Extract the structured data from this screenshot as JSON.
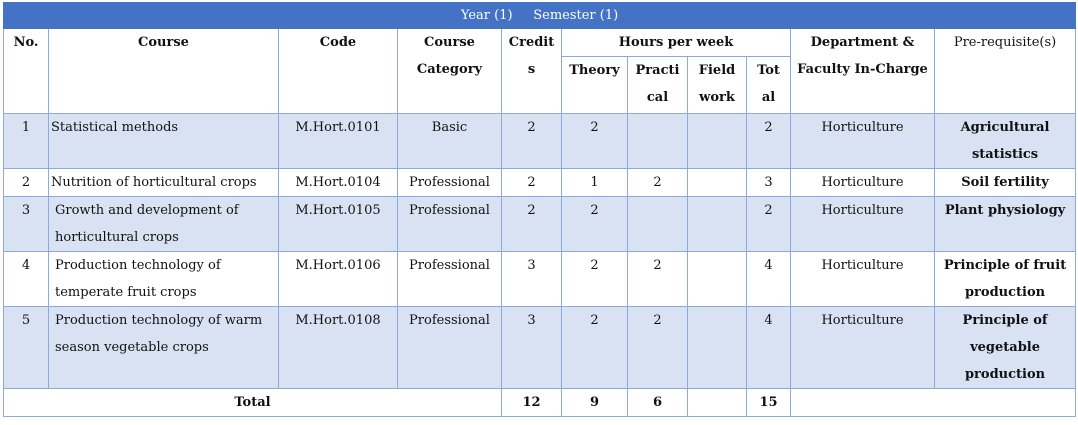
{
  "banner": {
    "year": "Year (1)",
    "semester": "Semester (1)"
  },
  "header": {
    "no": "No.",
    "course": "Course",
    "code": "Code",
    "category_1": "Course",
    "category_2": "Category",
    "credits_1": "Credit",
    "credits_2": "s",
    "hours": "Hours per week",
    "theory": "Theory",
    "practical_1": "Practi",
    "practical_2": "cal",
    "field_1": "Field",
    "field_2": "work",
    "total_1": "Tot",
    "total_2": "al",
    "dept_1": "Department &",
    "dept_2": "Faculty In-Charge",
    "prereq": "Pre-requisite(s)"
  },
  "rows": [
    {
      "no": "1",
      "course_1": "Statistical methods",
      "course_2": "",
      "code": "M.Hort.0101",
      "category": "Basic",
      "credits": "2",
      "theory": "2",
      "practical": "",
      "field": "",
      "total": "2",
      "dept": "Horticulture",
      "prereq_1": "Agricultural",
      "prereq_2": "statistics",
      "prereq_3": ""
    },
    {
      "no": "2",
      "course_1": "Nutrition of horticultural crops",
      "course_2": "",
      "code": "M.Hort.0104",
      "category": "Professional",
      "credits": "2",
      "theory": "1",
      "practical": "2",
      "field": "",
      "total": "3",
      "dept": "Horticulture",
      "prereq_1": "Soil fertility",
      "prereq_2": "",
      "prereq_3": ""
    },
    {
      "no": "3",
      "course_1": "Growth and development of",
      "course_2": "horticultural crops",
      "code": "M.Hort.0105",
      "category": "Professional",
      "credits": "2",
      "theory": "2",
      "practical": "",
      "field": "",
      "total": "2",
      "dept": "Horticulture",
      "prereq_1": "Plant physiology",
      "prereq_2": "",
      "prereq_3": ""
    },
    {
      "no": "4",
      "course_1": "Production technology of",
      "course_2": "temperate fruit crops",
      "code": "M.Hort.0106",
      "category": "Professional",
      "credits": "3",
      "theory": "2",
      "practical": "2",
      "field": "",
      "total": "4",
      "dept": "Horticulture",
      "prereq_1": "Principle of fruit",
      "prereq_2": "production",
      "prereq_3": ""
    },
    {
      "no": "5",
      "course_1": "Production technology of warm",
      "course_2": "season vegetable crops",
      "code": "M.Hort.0108",
      "category": "Professional",
      "credits": "3",
      "theory": "2",
      "practical": "2",
      "field": "",
      "total": "4",
      "dept": "Horticulture",
      "prereq_1": "Principle of",
      "prereq_2": "vegetable",
      "prereq_3": "production"
    }
  ],
  "totals": {
    "label": "Total",
    "credits": "12",
    "theory": "9",
    "practical": "6",
    "field": "",
    "total": "15"
  }
}
